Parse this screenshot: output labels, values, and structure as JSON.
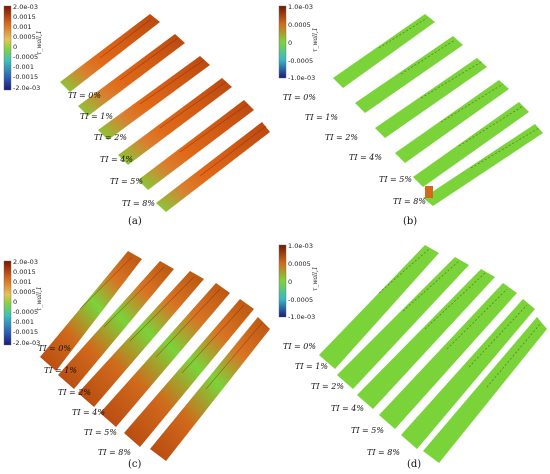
{
  "colors": {
    "wall_green": "#7bd33a",
    "warm_orange": "#e2701c",
    "dark_red": "#8a1d0f",
    "cool_blue": "#2b3aa0",
    "speckle_dark": "#3d2a12"
  },
  "panels": [
    {
      "id": "a",
      "caption": "(a)",
      "colorbar": {
        "label": "τ_wall,1",
        "ticks": [
          "2.0e-03",
          "0.0015",
          "0.001",
          "0.0005",
          "0",
          "-0.0005",
          "-0.001",
          "-0.0015",
          "-2.0e-03"
        ]
      },
      "ti_labels": [
        "TI = 0%",
        "TI = 1%",
        "TI = 2%",
        "TI = 4%",
        "TI = 5%",
        "TI = 8%"
      ]
    },
    {
      "id": "b",
      "caption": "(b)",
      "colorbar": {
        "label": "τ_wall,1",
        "ticks": [
          "1.0e-03",
          "0.0005",
          "0",
          "-0.0005",
          "-1.0e-03"
        ]
      },
      "ti_labels": [
        "TI = 0%",
        "TI = 1%",
        "TI = 2%",
        "TI = 4%",
        "TI = 5%",
        "TI = 8%"
      ]
    },
    {
      "id": "c",
      "caption": "(c)",
      "colorbar": {
        "label": "τ_wall,1",
        "ticks": [
          "2.0e-03",
          "0.0015",
          "0.001",
          "0.0005",
          "0",
          "-0.0005",
          "-0.001",
          "-0.0015",
          "-2.0e-03"
        ]
      },
      "ti_labels": [
        "TI = 0%",
        "TI = 1%",
        "TI = 2%",
        "TI = 4%",
        "TI = 5%",
        "TI = 8%"
      ]
    },
    {
      "id": "d",
      "caption": "(d)",
      "colorbar": {
        "label": "τ_wall,1",
        "ticks": [
          "1.0e-03",
          "0.0005",
          "0",
          "-0.0005",
          "-1.0e-03"
        ]
      },
      "ti_labels": [
        "TI = 0%",
        "TI = 1%",
        "TI = 2%",
        "TI = 4%",
        "TI = 5%",
        "TI = 8%"
      ]
    }
  ]
}
